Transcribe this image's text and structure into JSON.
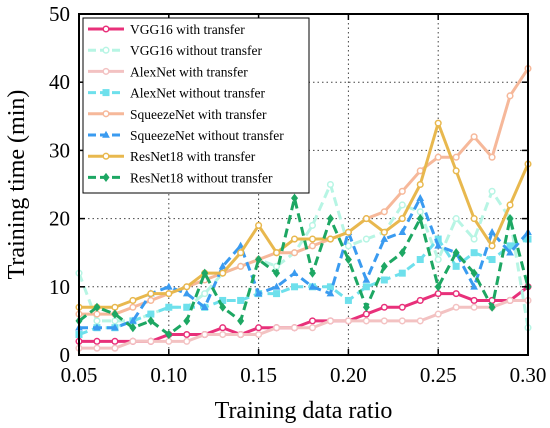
{
  "chart_data": {
    "type": "line",
    "xlabel": "Training data ratio",
    "ylabel": "Training time (min)",
    "xlim": [
      0.05,
      0.3
    ],
    "ylim": [
      0,
      50
    ],
    "xticks": [
      0.05,
      0.1,
      0.15,
      0.2,
      0.25,
      0.3
    ],
    "xtick_labels": [
      "0.05",
      "0.10",
      "0.15",
      "0.20",
      "0.25",
      "0.30"
    ],
    "yticks": [
      0,
      10,
      20,
      30,
      40,
      50
    ],
    "ytick_labels": [
      "0",
      "10",
      "20",
      "30",
      "40",
      "50"
    ],
    "grid": true,
    "legend_position": "top-left",
    "x": [
      0.05,
      0.06,
      0.07,
      0.08,
      0.09,
      0.1,
      0.11,
      0.12,
      0.13,
      0.14,
      0.15,
      0.16,
      0.17,
      0.18,
      0.19,
      0.2,
      0.21,
      0.22,
      0.23,
      0.24,
      0.25,
      0.26,
      0.27,
      0.28,
      0.29,
      0.3
    ],
    "series": [
      {
        "name": "VGG16 with transfer",
        "color": "#e8307a",
        "dash": "solid",
        "marker": "circle",
        "values": [
          2,
          2,
          2,
          2,
          2,
          3,
          3,
          3,
          4,
          3,
          4,
          4,
          4,
          5,
          5,
          5,
          6,
          7,
          7,
          8,
          9,
          9,
          8,
          8,
          8,
          10
        ]
      },
      {
        "name": "VGG16 without transfer",
        "color": "#b7f5e4",
        "dash": "dashed",
        "marker": "circle",
        "values": [
          12,
          5,
          5,
          5,
          6,
          7,
          7,
          9,
          12,
          13,
          14,
          13,
          15,
          19,
          25,
          16,
          17,
          18,
          22,
          21,
          14,
          20,
          17,
          24,
          20,
          4
        ]
      },
      {
        "name": "AlexNet with transfer",
        "color": "#f3c2c2",
        "dash": "solid",
        "marker": "circle",
        "values": [
          1,
          1,
          1,
          2,
          2,
          2,
          2,
          3,
          3,
          3,
          3,
          4,
          4,
          4,
          5,
          5,
          5,
          5,
          5,
          5,
          6,
          7,
          7,
          7,
          8,
          8
        ]
      },
      {
        "name": "AlexNet without transfer",
        "color": "#6ee0ec",
        "dash": "dashed",
        "marker": "square",
        "values": [
          3,
          4,
          4,
          5,
          6,
          7,
          7,
          7,
          8,
          8,
          9,
          9,
          10,
          10,
          10,
          8,
          10,
          11,
          12,
          14,
          17,
          13,
          15,
          14,
          16,
          17
        ]
      },
      {
        "name": "SqueezeNet with transfer",
        "color": "#f6b89a",
        "dash": "solid",
        "marker": "circle",
        "values": [
          6,
          6,
          6,
          7,
          8,
          9,
          10,
          11,
          12,
          13,
          14,
          15,
          15,
          16,
          17,
          18,
          20,
          21,
          24,
          27,
          29,
          29,
          32,
          29,
          38,
          42
        ]
      },
      {
        "name": "SqueezeNet without transfer",
        "color": "#3a9bf0",
        "dash": "dashed",
        "marker": "triangle",
        "values": [
          4,
          4,
          4,
          5,
          9,
          10,
          9,
          7,
          13,
          16,
          9,
          10,
          12,
          10,
          9,
          18,
          11,
          17,
          18,
          23,
          16,
          15,
          10,
          18,
          15,
          18
        ]
      },
      {
        "name": "ResNet18 with transfer",
        "color": "#e8b84e",
        "dash": "solid",
        "marker": "circle",
        "values": [
          7,
          7,
          7,
          8,
          9,
          9,
          10,
          12,
          12,
          15,
          19,
          15,
          17,
          17,
          17,
          18,
          20,
          18,
          20,
          25,
          34,
          27,
          20,
          16,
          22,
          28
        ]
      },
      {
        "name": "ResNet18 without transfer",
        "color": "#1da763",
        "dash": "dashed",
        "marker": "diamond",
        "values": [
          5,
          7,
          6,
          4,
          5,
          3,
          5,
          12,
          7,
          5,
          14,
          12,
          23,
          12,
          20,
          14,
          7,
          13,
          15,
          20,
          10,
          15,
          12,
          7,
          20,
          10
        ]
      }
    ]
  }
}
